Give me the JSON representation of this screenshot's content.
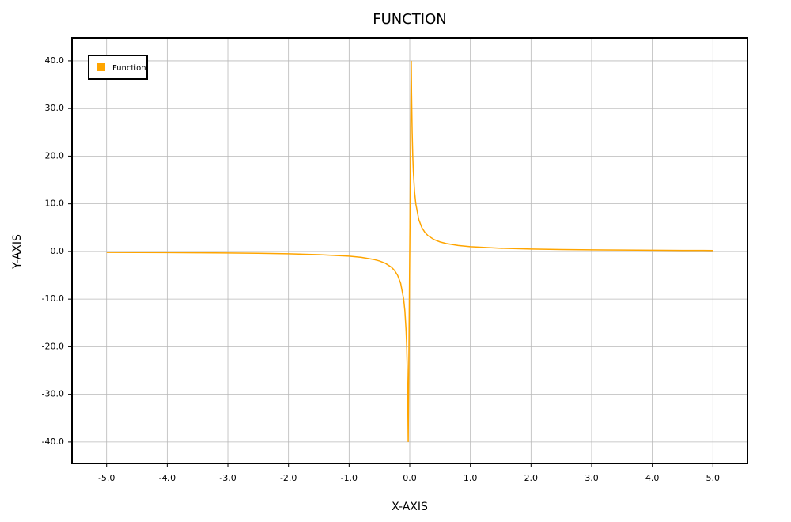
{
  "chart_data": {
    "type": "line",
    "title": "FUNCTION",
    "x_label": "X-AXIS",
    "y_label": "Y-AXIS",
    "x": [
      -5,
      -4.5,
      -4,
      -3.5,
      -3,
      -2.5,
      -2,
      -1.5,
      -1,
      -0.8,
      -0.6,
      -0.5,
      -0.4,
      -0.3,
      -0.25,
      -0.2,
      -0.15,
      -0.1,
      -0.08,
      -0.06,
      -0.05,
      -0.04,
      -0.03,
      -0.025,
      0.025,
      0.03,
      0.04,
      0.05,
      0.06,
      0.08,
      0.1,
      0.15,
      0.2,
      0.25,
      0.3,
      0.4,
      0.5,
      0.6,
      0.8,
      1,
      1.5,
      2,
      2.5,
      3,
      3.5,
      4,
      4.5,
      5
    ],
    "series": [
      {
        "name": "Function",
        "color": "#ffa500",
        "values": [
          -0.2,
          -0.22,
          -0.25,
          -0.29,
          -0.33,
          -0.4,
          -0.5,
          -0.67,
          -1,
          -1.25,
          -1.67,
          -2,
          -2.5,
          -3.33,
          -4,
          -5,
          -6.67,
          -10,
          -12.5,
          -16.67,
          -20,
          -25,
          -33.33,
          -40,
          40,
          33.33,
          25,
          20,
          16.67,
          12.5,
          10,
          6.67,
          5,
          4,
          3.33,
          2.5,
          2,
          1.67,
          1.25,
          1,
          0.67,
          0.5,
          0.4,
          0.33,
          0.29,
          0.25,
          0.22,
          0.2
        ]
      }
    ],
    "xlim": [
      -5.57,
      5.57
    ],
    "ylim": [
      -44.5,
      44.8
    ],
    "xticks": [
      {
        "value": -5,
        "label": "-5.0"
      },
      {
        "value": -4,
        "label": "-4.0"
      },
      {
        "value": -3,
        "label": "-3.0"
      },
      {
        "value": -2,
        "label": "-2.0"
      },
      {
        "value": -1,
        "label": "-1.0"
      },
      {
        "value": 0,
        "label": "0.0"
      },
      {
        "value": 1,
        "label": "1.0"
      },
      {
        "value": 2,
        "label": "2.0"
      },
      {
        "value": 3,
        "label": "3.0"
      },
      {
        "value": 4,
        "label": "4.0"
      },
      {
        "value": 5,
        "label": "5.0"
      }
    ],
    "yticks": [
      {
        "value": -40,
        "label": "-40.0"
      },
      {
        "value": -30,
        "label": "-30.0"
      },
      {
        "value": -20,
        "label": "-20.0"
      },
      {
        "value": -10,
        "label": "-10.0"
      },
      {
        "value": 0,
        "label": "0.0"
      },
      {
        "value": 10,
        "label": "10.0"
      },
      {
        "value": 20,
        "label": "20.0"
      },
      {
        "value": 30,
        "label": "30.0"
      },
      {
        "value": 40,
        "label": "40.0"
      }
    ],
    "grid": true,
    "legend_position": "upper-left"
  }
}
